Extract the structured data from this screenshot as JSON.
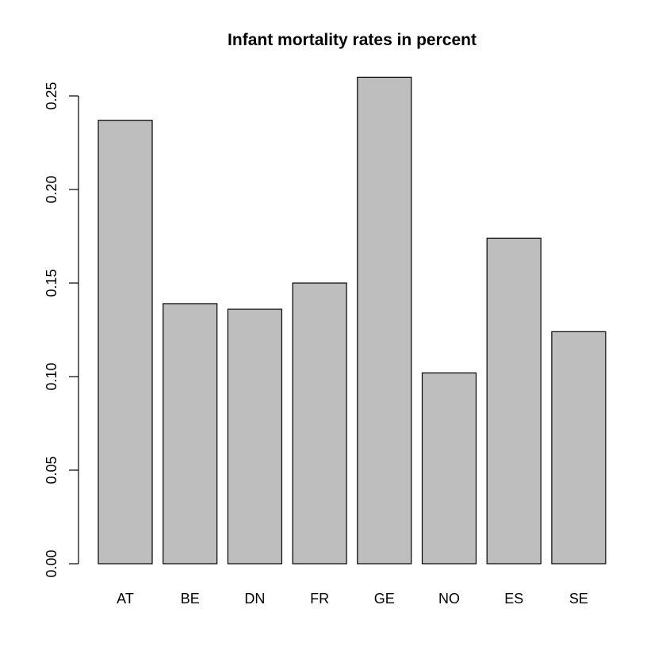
{
  "chart_data": {
    "type": "bar",
    "title": "Infant mortality rates in percent",
    "xlabel": "",
    "ylabel": "",
    "categories": [
      "AT",
      "BE",
      "DN",
      "FR",
      "GE",
      "NO",
      "ES",
      "SE"
    ],
    "values": [
      0.237,
      0.139,
      0.136,
      0.15,
      0.26,
      0.102,
      0.174,
      0.124
    ],
    "ylim": [
      0,
      0.26
    ],
    "yticks": [
      0.0,
      0.05,
      0.1,
      0.15,
      0.2,
      0.25
    ],
    "ytick_labels": [
      "0.00",
      "0.05",
      "0.10",
      "0.15",
      "0.20",
      "0.25"
    ],
    "grid": false,
    "bar_color": "#bebebe",
    "bar_edge_color": "#000000"
  }
}
